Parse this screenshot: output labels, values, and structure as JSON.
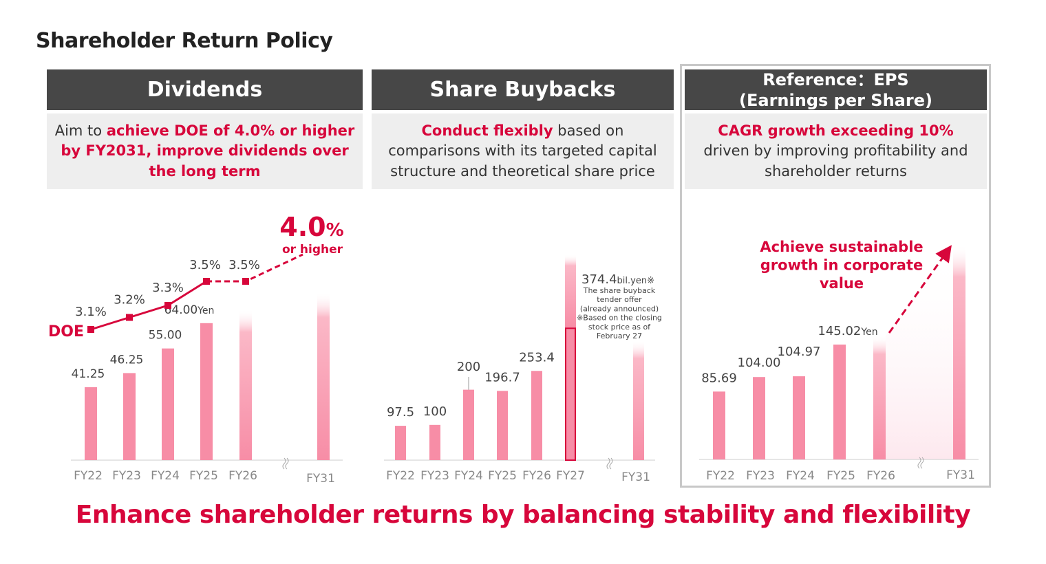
{
  "title": "Shareholder Return Policy",
  "colors": {
    "accent": "#d7063b",
    "bar": "#f78da6",
    "header_bg": "#474747",
    "sub_bg": "#eeeeee"
  },
  "panels": {
    "dividends": {
      "header": "Dividends",
      "desc_pre": "Aim to ",
      "desc_red": "achieve DOE of 4.0% or higher by FY2031, improve dividends over the long term"
    },
    "buybacks": {
      "header": "Share Buybacks",
      "desc_red": "Conduct flexibly",
      "desc_post": " based on comparisons with its targeted capital structure and theoretical share price"
    },
    "eps": {
      "header_line1": "Reference：EPS",
      "header_line2": "(Earnings per Share)",
      "desc_red": "CAGR growth exceeding 10%",
      "desc_post": " driven by improving profitability and shareholder returns"
    }
  },
  "chart_data": [
    {
      "type": "bar",
      "name": "dividends",
      "categories": [
        "FY22",
        "FY23",
        "FY24",
        "FY25",
        "FY26",
        "FY31"
      ],
      "values": [
        41.25,
        46.25,
        55.0,
        64.0,
        null,
        null
      ],
      "labels": [
        "41.25",
        "46.25",
        "55.00",
        "64.00",
        "",
        ""
      ],
      "unit": "Yen",
      "forecast": [
        false,
        false,
        false,
        false,
        true,
        true
      ],
      "axis_break_before": "FY31",
      "line_series": {
        "name": "DOE",
        "unit": "%",
        "values": [
          3.1,
          3.2,
          3.3,
          3.5,
          3.5
        ],
        "labels": [
          "3.1%",
          "3.2%",
          "3.3%",
          "3.5%",
          "3.5%"
        ],
        "dashed_from": "FY25",
        "target_label": "4.0%",
        "target_sub": "or higher",
        "target_value": 4.0
      }
    },
    {
      "type": "bar",
      "name": "buybacks",
      "categories": [
        "FY22",
        "FY23",
        "FY24",
        "FY25",
        "FY26",
        "FY27",
        "FY31"
      ],
      "values": [
        97.5,
        100,
        200,
        196.7,
        253.4,
        374.4,
        null
      ],
      "labels": [
        "97.5",
        "100",
        "200",
        "196.7",
        "253.4",
        "",
        ""
      ],
      "forecast": [
        false,
        false,
        false,
        false,
        false,
        true,
        true
      ],
      "axis_break_before": "FY31",
      "annotation": {
        "value": "374.4",
        "unit": "bil.yen※",
        "lines": [
          "The share buyback",
          "tender offer",
          "(already announced)",
          "※Based on the closing",
          "stock price as of",
          "February 27"
        ]
      }
    },
    {
      "type": "bar",
      "name": "eps",
      "categories": [
        "FY22",
        "FY23",
        "FY24",
        "FY25",
        "FY26",
        "FY31"
      ],
      "values": [
        85.69,
        104.0,
        104.97,
        145.02,
        null,
        null
      ],
      "labels": [
        "85.69",
        "104.00",
        "104.97",
        "145.02",
        "",
        ""
      ],
      "unit": "Yen",
      "forecast": [
        false,
        false,
        false,
        false,
        true,
        true
      ],
      "axis_break_before": "FY31",
      "annotation": {
        "lines": [
          "Achieve sustainable",
          "growth in corporate",
          "value"
        ]
      }
    }
  ],
  "bottom_message": "Enhance shareholder returns by balancing stability and flexibility"
}
